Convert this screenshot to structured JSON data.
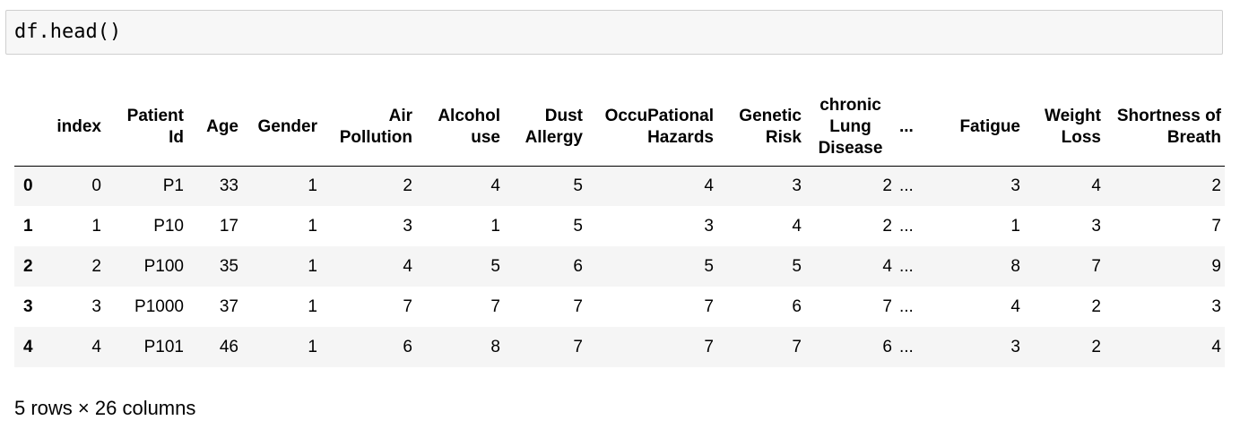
{
  "code_cell": {
    "source": "df.head()"
  },
  "table": {
    "columns": [
      "",
      "index",
      "Patient Id",
      "Age",
      "Gender",
      "Air Pollution",
      "Alcohol use",
      "Dust Allergy",
      "OccuPational Hazards",
      "Genetic Risk",
      "chronic Lung Disease",
      "...",
      "Fatigue",
      "Weight Loss",
      "Shortness of Breath"
    ],
    "rows": [
      [
        "0",
        "0",
        "P1",
        "33",
        "1",
        "2",
        "4",
        "5",
        "4",
        "3",
        "2",
        "...",
        "3",
        "4",
        "2"
      ],
      [
        "1",
        "1",
        "P10",
        "17",
        "1",
        "3",
        "1",
        "5",
        "3",
        "4",
        "2",
        "...",
        "1",
        "3",
        "7"
      ],
      [
        "2",
        "2",
        "P100",
        "35",
        "1",
        "4",
        "5",
        "6",
        "5",
        "5",
        "4",
        "...",
        "8",
        "7",
        "9"
      ],
      [
        "3",
        "3",
        "P1000",
        "37",
        "1",
        "7",
        "7",
        "7",
        "7",
        "6",
        "7",
        "...",
        "4",
        "2",
        "3"
      ],
      [
        "4",
        "4",
        "P101",
        "46",
        "1",
        "6",
        "8",
        "7",
        "7",
        "7",
        "6",
        "...",
        "3",
        "2",
        "4"
      ]
    ]
  },
  "footer": {
    "shape_text": "5 rows × 26 columns"
  }
}
